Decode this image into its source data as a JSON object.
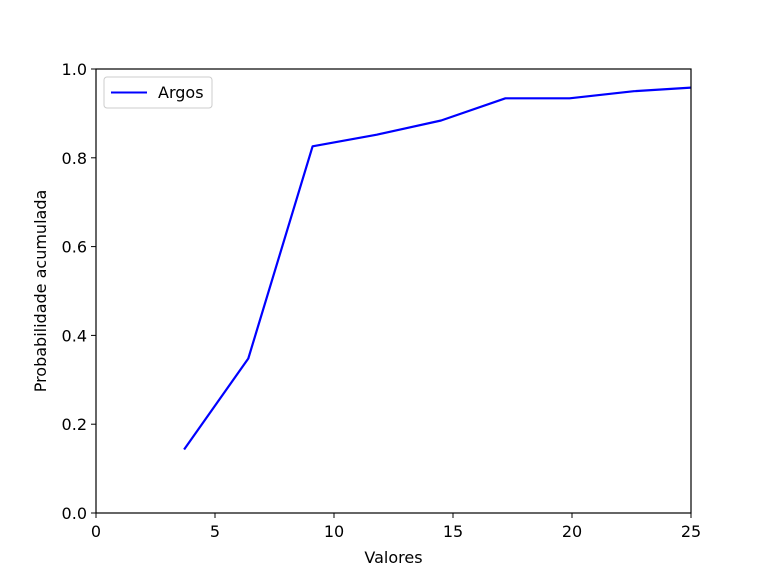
{
  "chart_data": {
    "type": "line",
    "xlabel": "Valores",
    "ylabel": "Probabilidade acumulada",
    "xlim": [
      0,
      25
    ],
    "ylim": [
      0,
      1.0
    ],
    "x_ticks": [
      0,
      5,
      10,
      15,
      20,
      25
    ],
    "x_tick_labels": [
      "0",
      "5",
      "10",
      "15",
      "20",
      "25"
    ],
    "y_ticks": [
      0,
      0.2,
      0.4,
      0.6,
      0.8,
      1.0
    ],
    "y_tick_labels": [
      "0.0",
      "0.2",
      "0.4",
      "0.6",
      "0.8",
      "1.0"
    ],
    "grid": false,
    "legend_position": "upper-left",
    "series": [
      {
        "name": "Argos",
        "color": "#0000ff",
        "x": [
          3.7,
          6.4,
          9.1,
          11.8,
          14.5,
          17.2,
          19.9,
          22.6,
          25.0
        ],
        "y": [
          0.143,
          0.348,
          0.826,
          0.852,
          0.884,
          0.934,
          0.934,
          0.95,
          0.958
        ]
      }
    ]
  }
}
